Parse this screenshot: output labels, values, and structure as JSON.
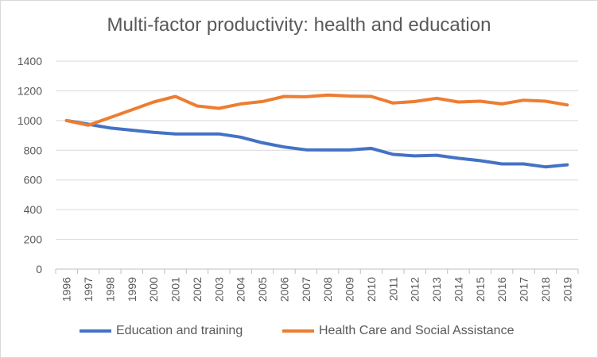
{
  "chart_data": {
    "type": "line",
    "title": "Multi-factor productivity: health and education",
    "xlabel": "",
    "ylabel": "",
    "ylim": [
      0,
      1400
    ],
    "yticks": [
      "0",
      "200",
      "400",
      "600",
      "800",
      "1000",
      "1200",
      "1400"
    ],
    "categories": [
      "1996",
      "1997",
      "1998",
      "1999",
      "2000",
      "2001",
      "2002",
      "2003",
      "2004",
      "2005",
      "2006",
      "2007",
      "2008",
      "2009",
      "2010",
      "2011",
      "2012",
      "2013",
      "2014",
      "2015",
      "2016",
      "2017",
      "2018",
      "2019"
    ],
    "grid": true,
    "legend_position": "bottom",
    "series": [
      {
        "name": "Education and training",
        "color": "#4472c4",
        "values": [
          1000,
          975,
          950,
          935,
          920,
          910,
          910,
          910,
          888,
          850,
          822,
          803,
          802,
          802,
          813,
          772,
          762,
          766,
          746,
          730,
          708,
          708,
          688,
          702
        ]
      },
      {
        "name": "Health Care and Social Assistance",
        "color": "#ed7d31",
        "values": [
          1000,
          968,
          1020,
          1072,
          1125,
          1162,
          1098,
          1082,
          1112,
          1128,
          1162,
          1160,
          1172,
          1165,
          1162,
          1118,
          1128,
          1150,
          1125,
          1130,
          1112,
          1137,
          1130,
          1105
        ]
      }
    ]
  }
}
